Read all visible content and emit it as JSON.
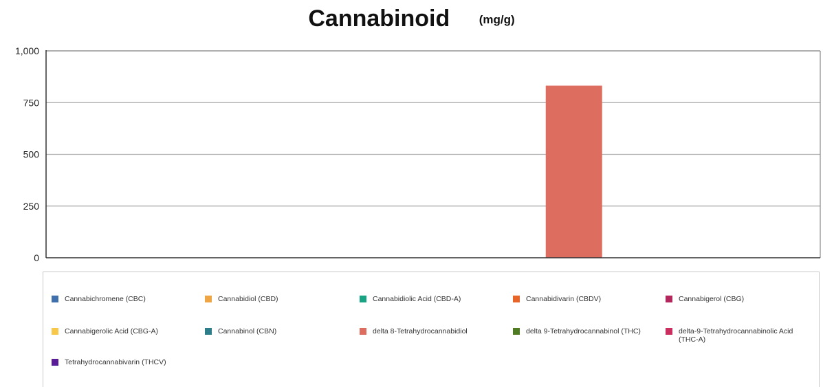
{
  "chart_data": {
    "type": "bar",
    "title": "Cannabinoid",
    "unit": "(mg/g)",
    "xlabel": "",
    "ylabel": "",
    "ylim": [
      0,
      1000
    ],
    "y_ticks": [
      0,
      250,
      500,
      750,
      1000
    ],
    "y_tick_labels": [
      "0",
      "250",
      "500",
      "750",
      "1,000"
    ],
    "grid": true,
    "legend_position": "bottom",
    "series": [
      {
        "name": "Cannabichromene (CBC)",
        "color": "#3f6fad",
        "value": 0
      },
      {
        "name": "Cannabidiol (CBD)",
        "color": "#f0a545",
        "value": 0
      },
      {
        "name": "Cannabidiolic Acid (CBD-A)",
        "color": "#18a383",
        "value": 0
      },
      {
        "name": "Cannabidivarin (CBDV)",
        "color": "#e8652a",
        "value": 0
      },
      {
        "name": "Cannabigerol (CBG)",
        "color": "#b2285c",
        "value": 0
      },
      {
        "name": "Cannabigerolic Acid (CBG-A)",
        "color": "#f7c84a",
        "value": 0
      },
      {
        "name": "Cannabinol (CBN)",
        "color": "#2d7d8a",
        "value": 0
      },
      {
        "name": "delta 8-Tetrahydrocannabidiol",
        "color": "#dc6d5f",
        "value": 832
      },
      {
        "name": "delta 9-Tetrahydrocannabinol (THC)",
        "color": "#4f7b23",
        "value": 0
      },
      {
        "name": "delta-9-Tetrahydrocannabinolic Acid (THC-A)",
        "color": "#c9305f",
        "value": 0
      },
      {
        "name": "Tetrahydrocannabivarin (THCV)",
        "color": "#5a1b99",
        "value": 0
      }
    ]
  }
}
